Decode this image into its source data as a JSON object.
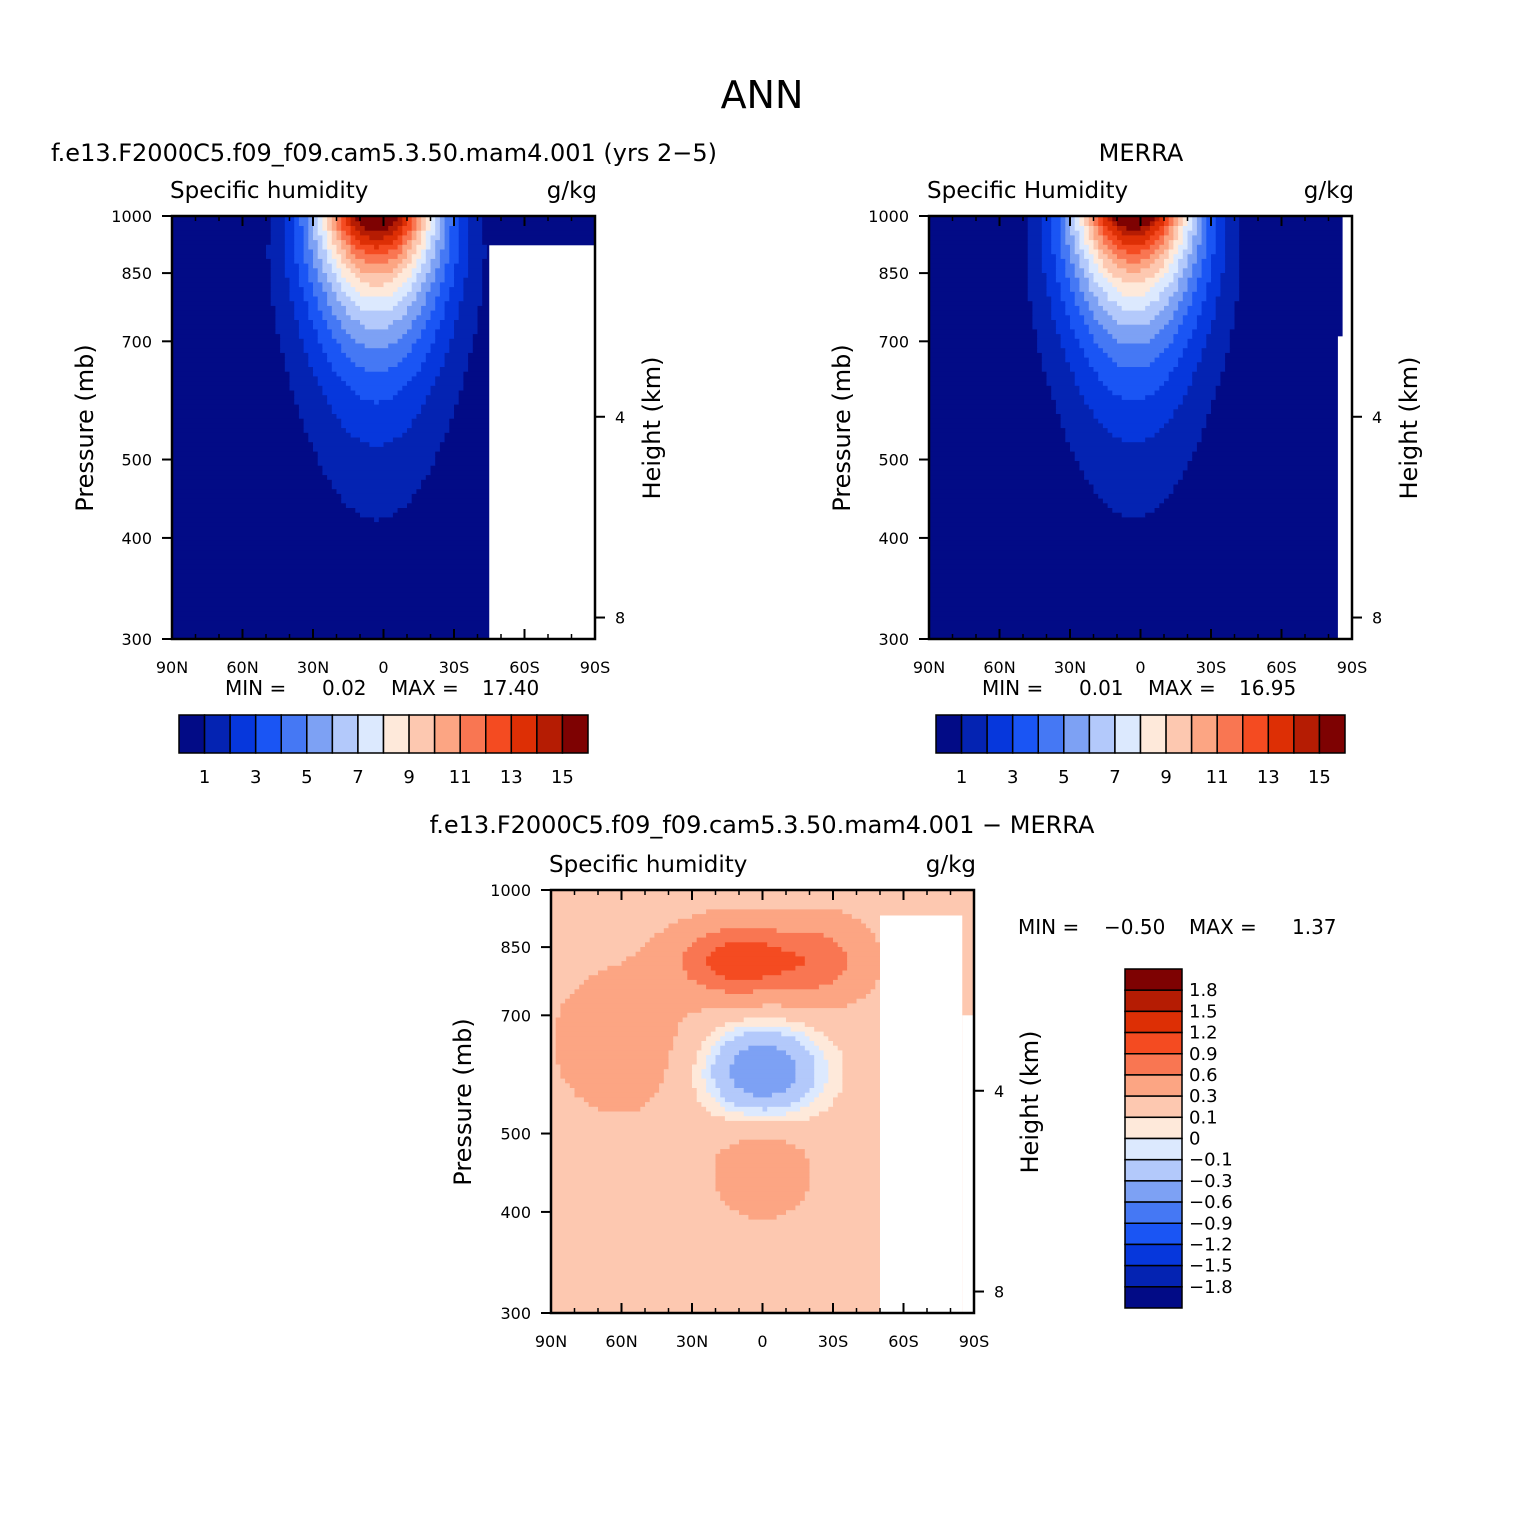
{
  "figure": {
    "title": "ANN"
  },
  "colors": {
    "positive_scale": [
      "#020b86",
      "#0423b2",
      "#0637dc",
      "#1a55f4",
      "#4578f4",
      "#7da1f4",
      "#b3c9fb",
      "#dce9fe",
      "#fee9da",
      "#fdc8b0",
      "#fca583",
      "#f97652",
      "#f44b21",
      "#dd2f05",
      "#b51c03",
      "#7e0202"
    ],
    "diff_scale": [
      "#7e0202",
      "#b51c03",
      "#dd2f05",
      "#f44b21",
      "#f97652",
      "#fca583",
      "#fdc8b0",
      "#fee9da",
      "#dce9fe",
      "#b3c9fb",
      "#7da1f4",
      "#4578f4",
      "#1a55f4",
      "#0637dc",
      "#0423b2",
      "#020b86"
    ]
  },
  "chart_data": [
    {
      "id": "model",
      "type": "contour",
      "subtitle": "f.e13.F2000C5.f09_f09.cam5.3.50.mam4.001 (yrs 2−5)",
      "title": "Specific humidity",
      "units": "g/kg",
      "xlabel": "",
      "ylabel": "Pressure (mb)",
      "ylabel_right": "Height (km)",
      "x_ticks": [
        "90N",
        "60N",
        "30N",
        "0",
        "30S",
        "60S",
        "90S"
      ],
      "y_ticks": [
        "300",
        "400",
        "500",
        "700",
        "850",
        "1000"
      ],
      "y_right_ticks": [
        "8",
        "4"
      ],
      "xlim": [
        90,
        -90
      ],
      "ylim": [
        1000,
        300
      ],
      "min_label": "MIN =",
      "min_value": "0.02",
      "max_label": "MAX =",
      "max_value": "17.40",
      "min": 0.02,
      "max": 17.4,
      "peak_lat": 3,
      "colorbar_labels": [
        "1",
        "3",
        "5",
        "7",
        "9",
        "11",
        "13",
        "15"
      ]
    },
    {
      "id": "obs",
      "type": "contour",
      "subtitle": "MERRA",
      "title": "Specific Humidity",
      "units": "g/kg",
      "xlabel": "",
      "ylabel": "Pressure (mb)",
      "ylabel_right": "Height (km)",
      "x_ticks": [
        "90N",
        "60N",
        "30N",
        "0",
        "30S",
        "60S",
        "90S"
      ],
      "y_ticks": [
        "300",
        "400",
        "500",
        "700",
        "850",
        "1000"
      ],
      "y_right_ticks": [
        "8",
        "4"
      ],
      "xlim": [
        90,
        -90
      ],
      "ylim": [
        1000,
        300
      ],
      "min_label": "MIN =",
      "min_value": "0.01",
      "max_label": "MAX =",
      "max_value": "16.95",
      "min": 0.01,
      "max": 16.95,
      "peak_lat": 3,
      "colorbar_labels": [
        "1",
        "3",
        "5",
        "7",
        "9",
        "11",
        "13",
        "15"
      ]
    },
    {
      "id": "diff",
      "type": "contour",
      "subtitle": "f.e13.F2000C5.f09_f09.cam5.3.50.mam4.001 − MERRA",
      "title": "Specific humidity",
      "units": "g/kg",
      "xlabel": "",
      "ylabel": "Pressure (mb)",
      "ylabel_right": "Height (km)",
      "x_ticks": [
        "90N",
        "60N",
        "30N",
        "0",
        "30S",
        "60S",
        "90S"
      ],
      "y_ticks": [
        "300",
        "400",
        "500",
        "700",
        "850",
        "1000"
      ],
      "y_right_ticks": [
        "8",
        "4"
      ],
      "xlim": [
        90,
        -90
      ],
      "ylim": [
        1000,
        300
      ],
      "min_label": "MIN =",
      "min_value": "−0.50",
      "max_label": "MAX =",
      "max_value": "1.37",
      "min": -0.5,
      "max": 1.37,
      "colorbar_labels": [
        "1.8",
        "1.5",
        "1.2",
        "0.9",
        "0.6",
        "0.3",
        "0.1",
        "0",
        "−0.1",
        "−0.3",
        "−0.6",
        "−0.9",
        "−1.2",
        "−1.5",
        "−1.8"
      ]
    }
  ]
}
